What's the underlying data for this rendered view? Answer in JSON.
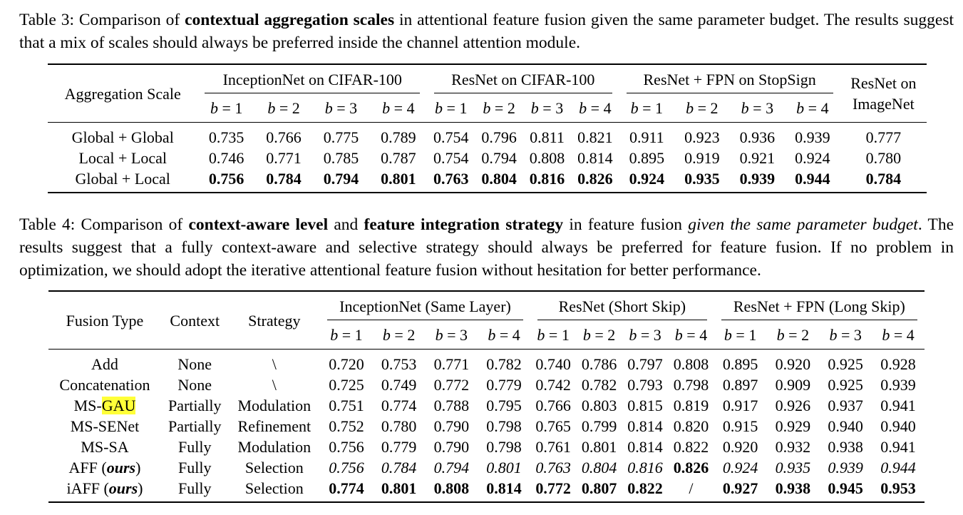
{
  "table3": {
    "caption": {
      "label": "Table 3: Comparison of ",
      "bold": "contextual aggregation scales",
      "rest": " in attentional feature fusion given the same parameter budget. The results suggest that a mix of scales should always be preferred inside the channel attention module."
    },
    "header": {
      "row_label": "Aggregation Scale",
      "groups": [
        "InceptionNet on CIFAR-100",
        "ResNet on CIFAR-100",
        "ResNet + FPN on StopSign"
      ],
      "last_group_line1": "ResNet on",
      "last_group_line2": "ImageNet",
      "b_labels": [
        "1",
        "2",
        "3",
        "4"
      ]
    },
    "rows": [
      {
        "name": "Global + Global",
        "values": [
          "0.735",
          "0.766",
          "0.775",
          "0.789",
          "0.754",
          "0.796",
          "0.811",
          "0.821",
          "0.911",
          "0.923",
          "0.936",
          "0.939",
          "0.777"
        ]
      },
      {
        "name": "Local + Local",
        "values": [
          "0.746",
          "0.771",
          "0.785",
          "0.787",
          "0.754",
          "0.794",
          "0.808",
          "0.814",
          "0.895",
          "0.919",
          "0.921",
          "0.924",
          "0.780"
        ]
      },
      {
        "name": "Global + Local",
        "values": [
          "0.756",
          "0.784",
          "0.794",
          "0.801",
          "0.763",
          "0.804",
          "0.816",
          "0.826",
          "0.924",
          "0.935",
          "0.939",
          "0.944",
          "0.784"
        ]
      }
    ]
  },
  "table4": {
    "caption": {
      "label": "Table 4: Comparison of ",
      "bold1": "context-aware level",
      "and": " and ",
      "bold2": "feature integration strategy",
      "mid": " in feature fusion ",
      "italic": "given the same parameter budget",
      "rest": ". The results suggest that a fully context-aware and selective strategy should always be preferred for feature fusion. If no problem in optimization, we should adopt the iterative attentional feature fusion without hesitation for better performance."
    },
    "header": {
      "fusion_type": "Fusion Type",
      "context": "Context",
      "strategy": "Strategy",
      "groups": [
        "InceptionNet (Same Layer)",
        "ResNet (Short Skip)",
        "ResNet + FPN (Long Skip)"
      ],
      "b_labels": [
        "1",
        "2",
        "3",
        "4"
      ]
    },
    "rows": [
      {
        "name": "Add",
        "name_suffix": "",
        "context": "None",
        "strategy": "\\",
        "values": [
          "0.720",
          "0.753",
          "0.771",
          "0.782",
          "0.740",
          "0.786",
          "0.797",
          "0.808",
          "0.895",
          "0.920",
          "0.925",
          "0.928"
        ]
      },
      {
        "name": "Concatenation",
        "name_suffix": "",
        "context": "None",
        "strategy": "\\",
        "values": [
          "0.725",
          "0.749",
          "0.772",
          "0.779",
          "0.742",
          "0.782",
          "0.793",
          "0.798",
          "0.897",
          "0.909",
          "0.925",
          "0.939"
        ]
      },
      {
        "name": "MS-",
        "name_highlight": "GAU",
        "context": "Partially",
        "strategy": "Modulation",
        "values": [
          "0.751",
          "0.774",
          "0.788",
          "0.795",
          "0.766",
          "0.803",
          "0.815",
          "0.819",
          "0.917",
          "0.926",
          "0.937",
          "0.941"
        ]
      },
      {
        "name": "MS-SENet",
        "name_suffix": "",
        "context": "Partially",
        "strategy": "Refinement",
        "values": [
          "0.752",
          "0.780",
          "0.790",
          "0.798",
          "0.765",
          "0.799",
          "0.814",
          "0.820",
          "0.915",
          "0.929",
          "0.940",
          "0.940"
        ]
      },
      {
        "name": "MS-SA",
        "name_suffix": "",
        "context": "Fully",
        "strategy": "Modulation",
        "values": [
          "0.756",
          "0.779",
          "0.790",
          "0.798",
          "0.761",
          "0.801",
          "0.814",
          "0.822",
          "0.920",
          "0.932",
          "0.938",
          "0.941"
        ]
      },
      {
        "name": "AFF (",
        "name_italic": "ours",
        "name_close": ")",
        "context": "Fully",
        "strategy": "Selection",
        "values": [
          "0.756",
          "0.784",
          "0.794",
          "0.801",
          "0.763",
          "0.804",
          "0.816",
          "0.826",
          "0.924",
          "0.935",
          "0.939",
          "0.944"
        ]
      },
      {
        "name": "iAFF (",
        "name_italic": "ours",
        "name_close": ")",
        "context": "Fully",
        "strategy": "Selection",
        "values": [
          "0.774",
          "0.801",
          "0.808",
          "0.814",
          "0.772",
          "0.807",
          "0.822",
          "/",
          "0.927",
          "0.938",
          "0.945",
          "0.953"
        ]
      }
    ]
  }
}
